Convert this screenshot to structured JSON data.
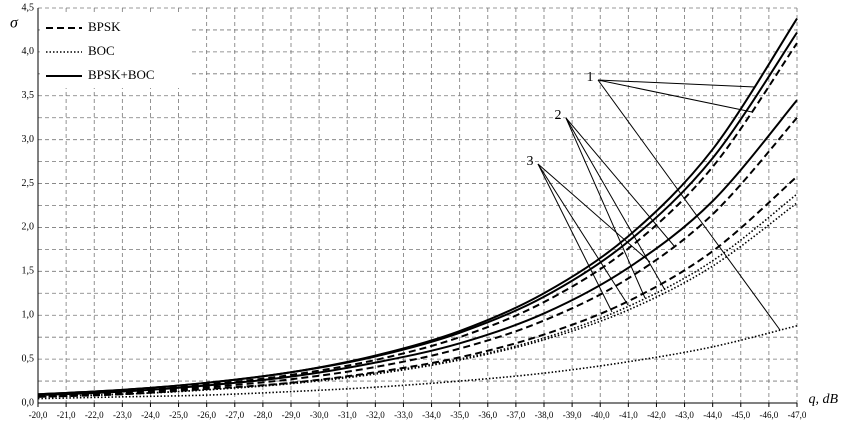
{
  "chart_data": {
    "type": "line",
    "y_label": "σ",
    "x_label": "q, dB",
    "x": [
      -20,
      -23,
      -26,
      -29,
      -32,
      -35,
      -38,
      -41,
      -44,
      -47
    ],
    "series": [
      {
        "name": "BPSK+BOC",
        "group": 0,
        "dash": "solid",
        "color": "#000000",
        "values": [
          0.1,
          0.15,
          0.23,
          0.35,
          0.54,
          0.82,
          1.25,
          1.9,
          2.89,
          4.38
        ]
      },
      {
        "name": "BPSK",
        "group": 0,
        "dash": "dashed",
        "color": "#000000",
        "values": [
          0.09,
          0.14,
          0.21,
          0.32,
          0.49,
          0.75,
          1.15,
          1.76,
          2.69,
          4.1
        ]
      },
      {
        "name": "BOC",
        "group": 0,
        "dash": "dotted",
        "color": "#000000",
        "values": [
          0.05,
          0.07,
          0.09,
          0.13,
          0.18,
          0.25,
          0.34,
          0.47,
          0.64,
          0.88
        ]
      },
      {
        "name": "BPSK+BOC",
        "group": 1,
        "dash": "solid",
        "color": "#000000",
        "values": [
          0.1,
          0.15,
          0.23,
          0.35,
          0.53,
          0.8,
          1.21,
          1.84,
          2.79,
          4.22
        ]
      },
      {
        "name": "BPSK",
        "group": 1,
        "dash": "dashed",
        "color": "#000000",
        "values": [
          0.08,
          0.12,
          0.18,
          0.27,
          0.41,
          0.62,
          0.94,
          1.42,
          2.15,
          3.25
        ]
      },
      {
        "name": "BOC",
        "group": 1,
        "dash": "dotted",
        "color": "#000000",
        "values": [
          0.07,
          0.1,
          0.15,
          0.23,
          0.34,
          0.5,
          0.74,
          1.1,
          1.62,
          2.38
        ]
      },
      {
        "name": "BPSK+BOC",
        "group": 2,
        "dash": "solid",
        "color": "#000000",
        "values": [
          0.09,
          0.13,
          0.2,
          0.3,
          0.46,
          0.68,
          1.02,
          1.54,
          2.3,
          3.45
        ]
      },
      {
        "name": "BPSK",
        "group": 2,
        "dash": "dashed",
        "color": "#000000",
        "values": [
          0.07,
          0.1,
          0.16,
          0.23,
          0.35,
          0.52,
          0.78,
          1.16,
          1.73,
          2.58
        ]
      },
      {
        "name": "BOC",
        "group": 2,
        "dash": "dotted",
        "color": "#000000",
        "values": [
          0.07,
          0.1,
          0.15,
          0.22,
          0.33,
          0.49,
          0.72,
          1.06,
          1.56,
          2.28
        ]
      }
    ],
    "groups": [
      "1",
      "2",
      "3"
    ],
    "legend": [
      "BPSK",
      "BOC",
      "BPSK+BOC"
    ],
    "legend_position": "upper left",
    "grid": true,
    "xlim": [
      -20,
      -47
    ],
    "ylim": [
      0,
      4.5
    ],
    "xticks": [
      {
        "value": -20,
        "label": "-20,0"
      },
      {
        "value": -21,
        "label": "-21,0"
      },
      {
        "value": -22,
        "label": "-22,0"
      },
      {
        "value": -23,
        "label": "-23,0"
      },
      {
        "value": -24,
        "label": "-24,0"
      },
      {
        "value": -25,
        "label": "-25,0"
      },
      {
        "value": -26,
        "label": "-26,0"
      },
      {
        "value": -27,
        "label": "-27,0"
      },
      {
        "value": -28,
        "label": "-28,0"
      },
      {
        "value": -29,
        "label": "-29,0"
      },
      {
        "value": -30,
        "label": "-30,0"
      },
      {
        "value": -31,
        "label": "-31,0"
      },
      {
        "value": -32,
        "label": "-32,0"
      },
      {
        "value": -33,
        "label": "-33,0"
      },
      {
        "value": -34,
        "label": "-34,0"
      },
      {
        "value": -35,
        "label": "-35,0"
      },
      {
        "value": -36,
        "label": "-36,0"
      },
      {
        "value": -37,
        "label": "-37,0"
      },
      {
        "value": -38,
        "label": "-38,0"
      },
      {
        "value": -39,
        "label": "-39,0"
      },
      {
        "value": -40,
        "label": "-40,0"
      },
      {
        "value": -41,
        "label": "-41,0"
      },
      {
        "value": -42,
        "label": "-42,0"
      },
      {
        "value": -43,
        "label": "-43,0"
      },
      {
        "value": -44,
        "label": "-44,0"
      },
      {
        "value": -45,
        "label": "-45,0"
      },
      {
        "value": -46,
        "label": "-46,0"
      },
      {
        "value": -47,
        "label": "-47,0"
      }
    ],
    "yticks": [
      {
        "value": 0,
        "label": "0,0"
      },
      {
        "value": 0.5,
        "label": "0,5"
      },
      {
        "value": 1,
        "label": "1,0"
      },
      {
        "value": 1.5,
        "label": "1,5"
      },
      {
        "value": 2,
        "label": "2,0"
      },
      {
        "value": 2.5,
        "label": "2,5"
      },
      {
        "value": 3,
        "label": "3,0"
      },
      {
        "value": 3.5,
        "label": "3,5"
      },
      {
        "value": 4,
        "label": "4,0"
      },
      {
        "value": 4.5,
        "label": "4,5"
      }
    ],
    "minor_yticks": [
      0.25,
      0.75,
      1.25,
      1.75,
      2.25,
      2.75,
      3.25,
      3.75,
      4.25
    ]
  }
}
